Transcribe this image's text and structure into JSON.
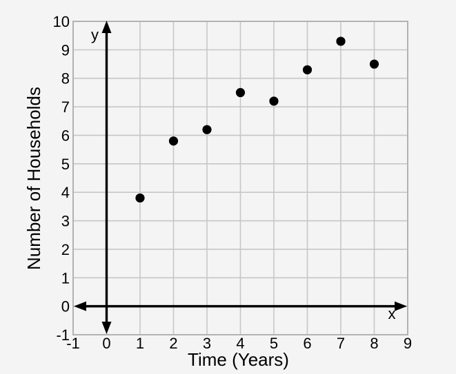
{
  "figure": {
    "description": "Scatter plot of number of households over time"
  },
  "chart_data": {
    "type": "scatter",
    "title": "",
    "xlabel": "Time (Years)",
    "ylabel": "Number of Households",
    "points": [
      {
        "x": 1,
        "y": 3.8
      },
      {
        "x": 2,
        "y": 5.8
      },
      {
        "x": 3,
        "y": 6.2
      },
      {
        "x": 4,
        "y": 7.5
      },
      {
        "x": 5,
        "y": 7.2
      },
      {
        "x": 6,
        "y": 8.3
      },
      {
        "x": 7,
        "y": 9.3
      },
      {
        "x": 8,
        "y": 8.5
      }
    ],
    "xlim": [
      -1,
      9
    ],
    "ylim": [
      -1,
      10
    ],
    "x_ticks": [
      -1,
      0,
      1,
      2,
      3,
      4,
      5,
      6,
      7,
      8,
      9
    ],
    "y_ticks": [
      -1,
      0,
      1,
      2,
      3,
      4,
      5,
      6,
      7,
      8,
      9,
      10
    ],
    "grid": true,
    "legend": false,
    "axis_letters": {
      "x": "x",
      "y": "y"
    },
    "colors": {
      "background": "#f4f4f4",
      "grid": "#c6c6c6",
      "border": "#b2b2b2",
      "axis": "#000000",
      "point": "#000000",
      "text": "#000000"
    }
  }
}
